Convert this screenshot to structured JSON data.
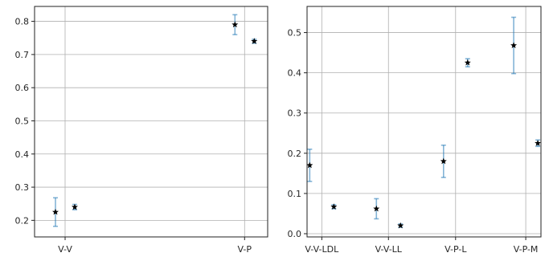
{
  "chart_data": [
    {
      "type": "scatter",
      "categories": [
        "V-V",
        "V-P"
      ],
      "ylim": [
        0.15,
        0.845
      ],
      "yticks": [
        0.2,
        0.3,
        0.4,
        0.5,
        0.6,
        0.7,
        0.8
      ],
      "ytick_labels": [
        "0.2",
        "0.3",
        "0.4",
        "0.5",
        "0.6",
        "0.7",
        "0.8"
      ],
      "grid": true,
      "series": [
        {
          "color": "#1f77b4",
          "marker": "star",
          "offset": "left",
          "values": [
            0.225,
            0.79
          ],
          "errors": [
            0.043,
            0.03
          ]
        },
        {
          "color": "#1f77b4",
          "marker": "star",
          "offset": "right",
          "values": [
            0.24,
            0.74
          ],
          "errors": [
            0.008,
            0.006
          ]
        }
      ]
    },
    {
      "type": "scatter",
      "categories": [
        "V-V-LDL",
        "V-V-LL",
        "V-P-L",
        "V-P-M"
      ],
      "ylim": [
        -0.008,
        0.565
      ],
      "yticks": [
        0.0,
        0.1,
        0.2,
        0.3,
        0.4,
        0.5
      ],
      "ytick_labels": [
        "0.0",
        "0.1",
        "0.2",
        "0.3",
        "0.4",
        "0.5"
      ],
      "grid": true,
      "series": [
        {
          "color": "#1f77b4",
          "marker": "star",
          "offset": "left",
          "values": [
            0.17,
            0.062,
            0.18,
            0.468
          ],
          "errors": [
            0.04,
            0.025,
            0.04,
            0.07
          ]
        },
        {
          "color": "#1f77b4",
          "marker": "star",
          "offset": "right",
          "values": [
            0.067,
            0.02,
            0.425,
            0.225
          ],
          "errors": [
            0.005,
            0.004,
            0.01,
            0.008
          ]
        }
      ]
    }
  ]
}
